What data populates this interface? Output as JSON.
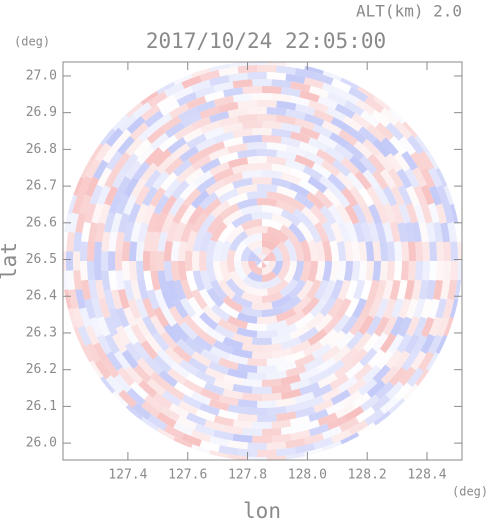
{
  "chart_data": {
    "type": "radar-ppi",
    "title": "2017/10/24 22:05:00",
    "altitude_label": "ALT(km) 2.0",
    "x_label": "lon",
    "y_label": "lat",
    "x_unit": "(deg)",
    "y_unit": "(deg)",
    "xlim": [
      127.183,
      128.517
    ],
    "ylim": [
      25.954,
      27.038
    ],
    "xticks": [
      127.4,
      127.6,
      127.8,
      {
        "value": 128.0,
        "label": "128.0"
      },
      128.2,
      128.4
    ],
    "yticks": [
      {
        "value": 26.0,
        "label": "26.0"
      },
      26.1,
      26.2,
      26.3,
      26.4,
      26.5,
      26.6,
      26.7,
      26.8,
      26.9,
      {
        "value": 27.0,
        "label": "27.0"
      }
    ],
    "colors": [
      "#f4a6a6",
      "#a9b2f4"
    ]
  }
}
